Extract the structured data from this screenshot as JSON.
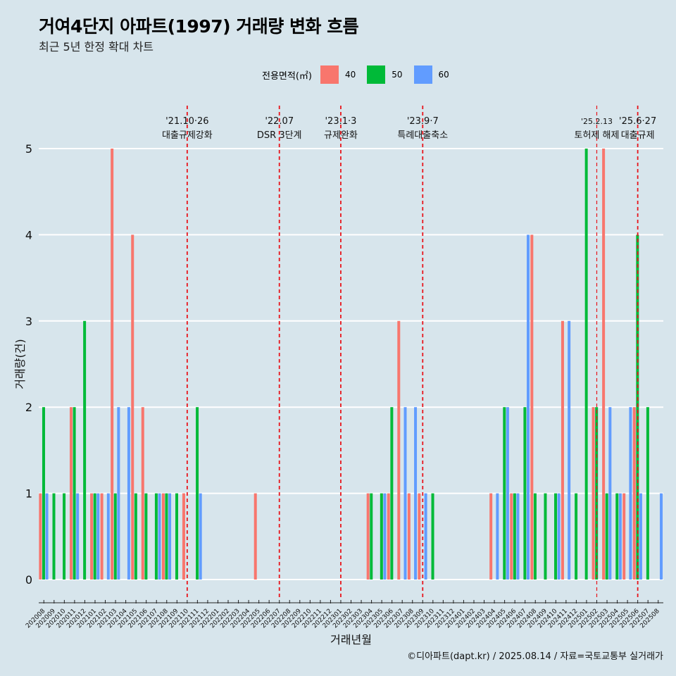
{
  "title": "거여4단지 아파트(1997) 거래량 변화 흐름",
  "subtitle": "최근 5년 한정 확대 차트",
  "legend": {
    "title": "전용면적(㎡)",
    "entries": [
      {
        "label": "40",
        "color": "#F8766D"
      },
      {
        "label": "50",
        "color": "#00BA38"
      },
      {
        "label": "60",
        "color": "#619CFF"
      }
    ]
  },
  "caption": "©디아파트(dapt.kr) / 2025.08.14 / 자료=국토교통부 실거래가",
  "chart_data": {
    "type": "bar",
    "xlabel": "거래년월",
    "ylabel": "거래량(건)",
    "ylim": [
      0,
      5
    ],
    "y_ticks": [
      0,
      1,
      2,
      3,
      4,
      5
    ],
    "categories": [
      "202008",
      "202009",
      "202010",
      "202011",
      "202012",
      "202101",
      "202102",
      "202103",
      "202104",
      "202105",
      "202106",
      "202107",
      "202108",
      "202109",
      "202110",
      "202111",
      "202112",
      "202201",
      "202202",
      "202203",
      "202204",
      "202205",
      "202206",
      "202207",
      "202208",
      "202209",
      "202210",
      "202211",
      "202212",
      "202301",
      "202302",
      "202303",
      "202304",
      "202305",
      "202306",
      "202307",
      "202308",
      "202309",
      "202310",
      "202311",
      "202312",
      "202401",
      "202402",
      "202403",
      "202404",
      "202405",
      "202406",
      "202407",
      "202408",
      "202409",
      "202410",
      "202411",
      "202412",
      "202501",
      "202502",
      "202503",
      "202504",
      "202505",
      "202506",
      "202507",
      "202508"
    ],
    "series": [
      {
        "name": "40",
        "color": "#F8766D",
        "values": [
          1,
          0,
          0,
          2,
          0,
          1,
          1,
          5,
          0,
          4,
          2,
          0,
          1,
          0,
          1,
          0,
          0,
          0,
          0,
          0,
          0,
          1,
          0,
          0,
          0,
          0,
          0,
          0,
          0,
          0,
          0,
          0,
          1,
          0,
          1,
          3,
          1,
          1,
          0,
          0,
          0,
          0,
          0,
          0,
          1,
          0,
          1,
          0,
          4,
          0,
          0,
          3,
          0,
          0,
          2,
          5,
          0,
          1,
          2,
          0,
          0
        ]
      },
      {
        "name": "50",
        "color": "#00BA38",
        "values": [
          2,
          1,
          1,
          2,
          3,
          1,
          0,
          1,
          0,
          1,
          1,
          1,
          1,
          1,
          0,
          2,
          0,
          0,
          0,
          0,
          0,
          0,
          0,
          0,
          0,
          0,
          0,
          0,
          0,
          0,
          0,
          0,
          1,
          1,
          2,
          0,
          0,
          0,
          1,
          0,
          0,
          0,
          0,
          0,
          0,
          2,
          1,
          2,
          1,
          1,
          1,
          0,
          1,
          5,
          2,
          1,
          1,
          0,
          4,
          2,
          0
        ]
      },
      {
        "name": "60",
        "color": "#619CFF",
        "values": [
          1,
          0,
          0,
          1,
          0,
          1,
          1,
          2,
          2,
          0,
          0,
          1,
          1,
          0,
          0,
          1,
          0,
          0,
          0,
          0,
          0,
          0,
          0,
          0,
          0,
          0,
          0,
          0,
          0,
          0,
          0,
          0,
          0,
          1,
          0,
          2,
          2,
          1,
          0,
          0,
          0,
          0,
          0,
          0,
          1,
          2,
          1,
          4,
          0,
          0,
          1,
          3,
          0,
          0,
          0,
          2,
          1,
          2,
          1,
          0,
          1
        ]
      }
    ],
    "annotations": [
      {
        "line1": "'21.10·26",
        "line2": "대출규제강화",
        "x": "202110"
      },
      {
        "line1": "'22.07",
        "line2": "DSR 3단계",
        "x": "202207"
      },
      {
        "line1": "'23.1·3",
        "line2": "규제완화",
        "x": "202301"
      },
      {
        "line1": "'23.9·7",
        "line2": "특례대출축소",
        "x": "202309"
      },
      {
        "line1": "'25.2.13",
        "line2": "토허제 해제",
        "x": "202502"
      },
      {
        "line1": "'25.6·27",
        "line2": "대출규제",
        "x": "202506"
      }
    ],
    "grid": true,
    "legend_position": "top"
  }
}
